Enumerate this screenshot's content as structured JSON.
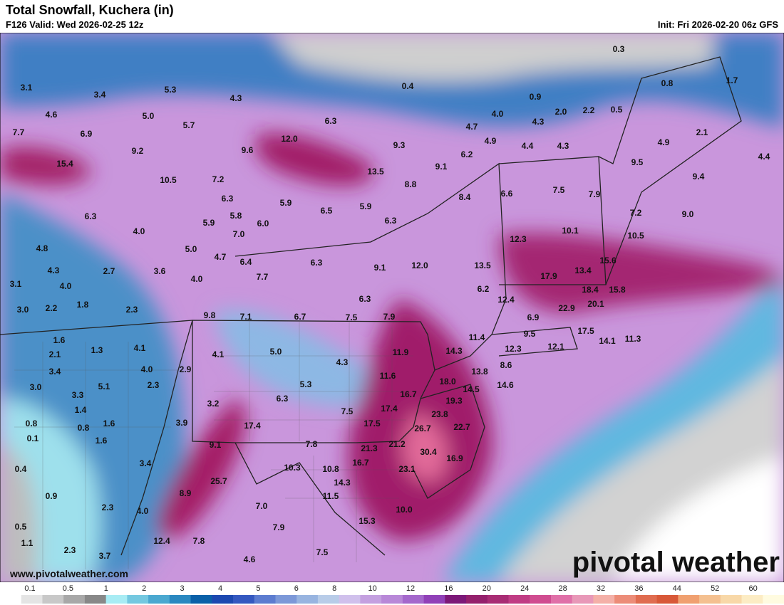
{
  "header": {
    "title": "Total Snowfall, Kuchera (in)",
    "valid": "F126 Valid: Wed 2026-02-25 12z",
    "init": "Init: Fri 2026-02-20 06z GFS"
  },
  "spot_values": [
    "0.3",
    "0.4",
    "0.8",
    "1.7",
    "3.1",
    "3.4",
    "5.3",
    "4.3",
    "0.9",
    "4.6",
    "5.0",
    "6.3",
    "4.0",
    "2.0",
    "2.2",
    "0.5",
    "7.7",
    "6.9",
    "5.7",
    "4.7",
    "4.3",
    "4.9",
    "2.1",
    "9.2",
    "12.0",
    "9.6",
    "9.3",
    "4.4",
    "4.3",
    "4.9",
    "15.4",
    "6.2",
    "4.4",
    "9.5",
    "10.5",
    "7.2",
    "13.5",
    "9.1",
    "8.8",
    "6.6",
    "7.5",
    "9.4",
    "8.4",
    "7.9",
    "6.3",
    "5.9",
    "6.5",
    "5.9",
    "6.3",
    "5.8",
    "5.9",
    "6.0",
    "6.3",
    "7.2",
    "9.0",
    "4.0",
    "7.0",
    "12.3",
    "10.1",
    "10.5",
    "4.8",
    "5.0",
    "4.7",
    "6.4",
    "6.3",
    "9.1",
    "12.0",
    "13.5",
    "15.6",
    "4.3",
    "2.7",
    "3.6",
    "4.0",
    "7.7",
    "17.9",
    "13.4",
    "3.1",
    "4.0",
    "6.2",
    "18.4",
    "15.8",
    "6.3",
    "12.4",
    "20.1",
    "22.9",
    "3.0",
    "2.2",
    "1.8",
    "2.3",
    "9.8",
    "7.1",
    "6.7",
    "7.5",
    "7.9",
    "6.9",
    "9.5",
    "11.4",
    "17.5",
    "14.1",
    "11.3",
    "1.6",
    "12.3",
    "12.1",
    "14.3",
    "1.3",
    "4.1",
    "5.0",
    "4.1",
    "11.9",
    "2.1",
    "4.3",
    "8.6",
    "13.8",
    "3.4",
    "4.0",
    "2.9",
    "11.6",
    "18.0",
    "14.6",
    "3.0",
    "5.1",
    "2.3",
    "5.3",
    "14.5",
    "3.3",
    "6.3",
    "16.7",
    "19.3",
    "3.2",
    "1.4",
    "7.5",
    "17.4",
    "23.8",
    "0.8",
    "1.6",
    "0.8",
    "3.9",
    "17.4",
    "17.5",
    "26.7",
    "22.7",
    "0.1",
    "1.6",
    "9.1",
    "7.8",
    "21.2",
    "21.3",
    "30.4",
    "3.4",
    "10.3",
    "10.8",
    "16.7",
    "16.9",
    "0.4",
    "23.1",
    "25.7",
    "14.3",
    "0.9",
    "8.9",
    "11.5",
    "2.3",
    "4.0",
    "7.0",
    "10.0",
    "0.5",
    "15.3",
    "7.9",
    "1.1",
    "12.4",
    "7.8",
    "2.3",
    "7.5",
    "3.7",
    "4.6"
  ],
  "legend": {
    "labels": [
      "0.1",
      "0.5",
      "1",
      "2",
      "3",
      "4",
      "5",
      "6",
      "8",
      "10",
      "12",
      "16",
      "20",
      "24",
      "28",
      "32",
      "36",
      "44",
      "52",
      "60"
    ]
  },
  "footer": {
    "website": "www.pivotalweather.com",
    "logo": "pivotal weather"
  }
}
